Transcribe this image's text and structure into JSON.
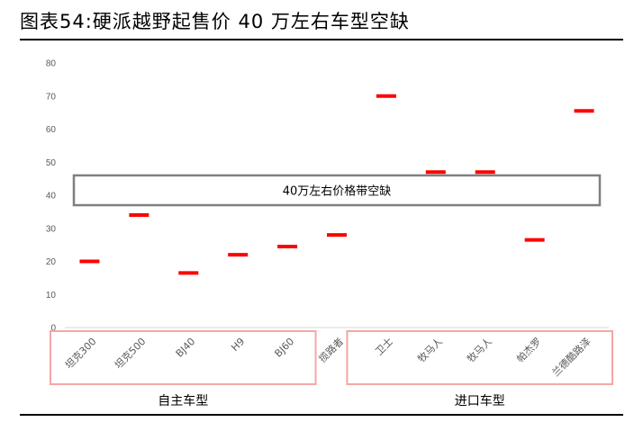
{
  "figure": {
    "title": "图表54:硬派越野起售价 40 万左右车型空缺"
  },
  "chart_data": {
    "type": "scatter",
    "categories": [
      "坦克300",
      "坦克500",
      "BJ40",
      "H9",
      "BJ60",
      "揽路者",
      "卫士",
      "牧马人",
      "牧马人",
      "帕杰罗",
      "兰德酷路泽"
    ],
    "values": [
      20,
      34,
      16.5,
      22,
      24.5,
      28,
      70,
      47,
      47,
      26.5,
      65.5
    ],
    "ylim": [
      0,
      80
    ],
    "yticks": [
      0,
      10,
      20,
      30,
      40,
      50,
      60,
      70,
      80
    ],
    "marker_color": "#ff0000",
    "gap_band": {
      "label": "40万左右价格带空缺",
      "from": 37,
      "to": 46
    },
    "groups": [
      {
        "label": "自主车型",
        "first": 0,
        "last": 4
      },
      {
        "label": "进口车型",
        "first": 6,
        "last": 10
      }
    ],
    "group_border_color": "#f4a6a6",
    "band_border_color": "#7f7f7f"
  }
}
